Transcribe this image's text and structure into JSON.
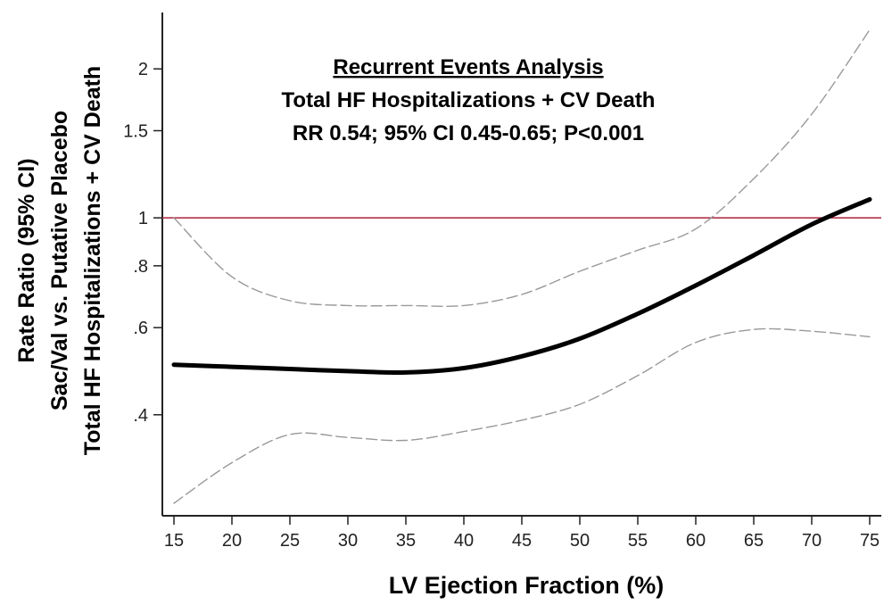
{
  "chart_data": {
    "type": "line",
    "title_lines": [
      "Recurrent Events Analysis",
      "Total HF Hospitalizations + CV Death",
      "RR 0.54; 95% CI 0.45-0.65; P<0.001"
    ],
    "xlabel": "LV Ejection Fraction (%)",
    "ylabel_lines": [
      "Rate Ratio (95% CI)",
      "Sac/Val vs. Putative Placebo",
      "Total HF Hospitalizations + CV Death"
    ],
    "x_ticks": [
      15,
      20,
      25,
      30,
      35,
      40,
      45,
      50,
      55,
      60,
      65,
      70,
      75
    ],
    "x_tick_labels": [
      "15",
      "20",
      "25",
      "30",
      "35",
      "40",
      "45",
      "50",
      "55",
      "60",
      "65",
      "70",
      "75"
    ],
    "y_ticks": [
      0.4,
      0.6,
      0.8,
      1,
      1.5,
      2
    ],
    "y_tick_labels": [
      ".4",
      ".6",
      ".8",
      "1",
      "1.5",
      "2"
    ],
    "y_scale": "log",
    "xlim": [
      14,
      76
    ],
    "ylim": [
      0.25,
      2.6
    ],
    "reference_line": {
      "y": 1,
      "color": "#b0203a"
    },
    "x": [
      15,
      20,
      25,
      30,
      35,
      40,
      45,
      50,
      55,
      60,
      65,
      70,
      75
    ],
    "series": [
      {
        "role": "estimate",
        "color": "#000000",
        "values": [
          0.505,
          0.5,
          0.495,
          0.49,
          0.487,
          0.497,
          0.525,
          0.57,
          0.64,
          0.73,
          0.84,
          0.97,
          1.09
        ]
      },
      {
        "role": "upper-ci",
        "color": "#999999",
        "values": [
          1.0,
          0.76,
          0.68,
          0.665,
          0.665,
          0.665,
          0.7,
          0.78,
          0.86,
          0.95,
          1.2,
          1.62,
          2.4
        ]
      },
      {
        "role": "lower-ci",
        "color": "#999999",
        "values": [
          0.265,
          0.32,
          0.365,
          0.36,
          0.355,
          0.37,
          0.39,
          0.42,
          0.48,
          0.56,
          0.595,
          0.59,
          0.575
        ]
      }
    ],
    "grid": false,
    "legend": "none"
  }
}
